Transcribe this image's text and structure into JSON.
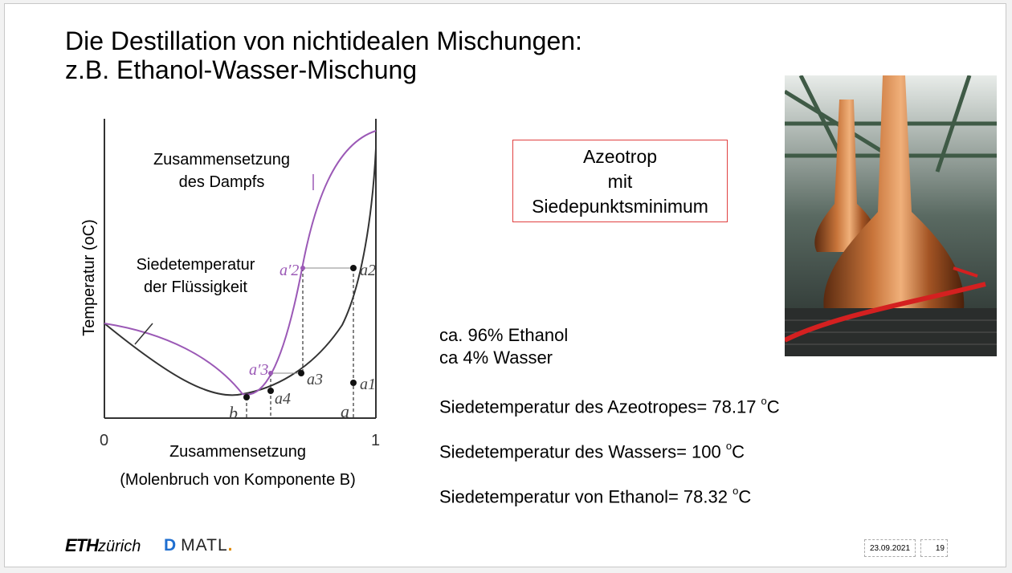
{
  "slide": {
    "title_line1": "Die Destillation von nichtidealen Mischungen:",
    "title_line2": "z.B. Ethanol-Wasser-Mischung"
  },
  "diagram": {
    "label_vapor_line1": "Zusammensetzung",
    "label_vapor_line2": "des Dampfs",
    "label_liquid_line1": "Siedetemperatur",
    "label_liquid_line2": "der Flüssigkeit",
    "y_axis_label": "Temperatur (oC)",
    "x_tick_0": "0",
    "x_tick_1": "1",
    "x_axis_label_line1": "Zusammensetzung",
    "x_axis_label_line2": "(Molenbruch von Komponente B)",
    "points": {
      "a2_prime": "a′2",
      "a2": "a2",
      "a3_prime": "a′3",
      "a3": "a3",
      "a4": "a4",
      "a1": "a1",
      "a": "a",
      "b": "b"
    },
    "colors": {
      "vapor_curve": "#9b59b6",
      "liquid_curve": "#333333"
    }
  },
  "azeotrop_box": {
    "line1": "Azeotrop",
    "line2": "mit",
    "line3": "Siedepunktsminimum",
    "border_color": "#e04040"
  },
  "info": {
    "ethanol": "ca. 96% Ethanol",
    "water": "ca 4% Wasser",
    "bp_azeotrope_label": "Siedetemperatur des Azeotropes= 78.17 ",
    "bp_water_label": "Siedetemperatur des Wassers= 100 ",
    "bp_ethanol_label": "Siedetemperatur von Ethanol= 78.32 ",
    "degree_sup": "o",
    "unit": "C"
  },
  "photo": {
    "icon": "copper-pot-stills-photo"
  },
  "footer": {
    "eth_bold": "ETH",
    "eth_italic": "zürich",
    "dmatl_d": "D",
    "dmatl_text": "MATL",
    "date": "23.09.2021",
    "page": "19"
  }
}
